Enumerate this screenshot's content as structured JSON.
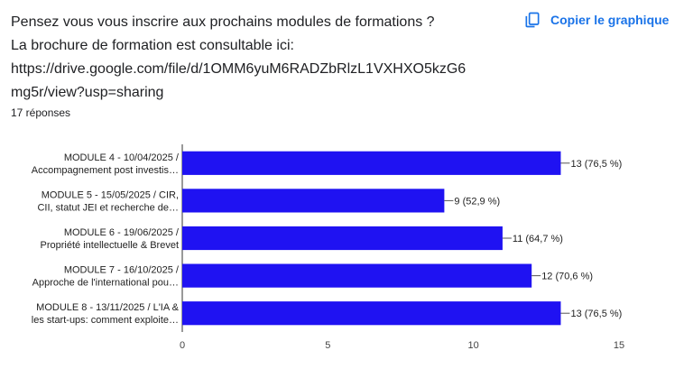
{
  "question": {
    "line1": "Pensez vous vous inscrire aux prochains modules de formations ?",
    "line2": "La brochure de formation est consultable ici:",
    "line3": "https://drive.google.com/file/d/1OMM6yuM6RADZbRlzL1VXHXO5kzG6",
    "line4": "mg5r/view?usp=sharing"
  },
  "responses_count": "17 réponses",
  "copy_button": {
    "label": "Copier le graphique",
    "icon": "copy-icon"
  },
  "colors": {
    "bar": "#1f12f2",
    "link": "#1a73e8"
  },
  "chart_data": {
    "type": "bar",
    "orientation": "horizontal",
    "categories": [
      [
        "MODULE 4 - 10/04/2025 /",
        "Accompagnement post investis…"
      ],
      [
        "MODULE 5 - 15/05/2025 / CIR,",
        "CII, statut JEI et recherche de…"
      ],
      [
        "MODULE 6 - 19/06/2025 /",
        "Propriété intellectuelle & Brevet"
      ],
      [
        "MODULE 7 - 16/10/2025 /",
        "Approche de l'international pou…"
      ],
      [
        "MODULE 8 - 13/11/2025 / L'IA &",
        "les start-ups: comment exploite…"
      ]
    ],
    "values": [
      13,
      9,
      11,
      12,
      13
    ],
    "data_labels": [
      "13 (76,5 %)",
      "9 (52,9 %)",
      "11 (64,7 %)",
      "12 (70,6 %)",
      "13 (76,5 %)"
    ],
    "xlim": [
      0,
      15
    ],
    "x_ticks": [
      "0",
      "5",
      "10",
      "15"
    ],
    "grid": false,
    "legend": "none"
  }
}
